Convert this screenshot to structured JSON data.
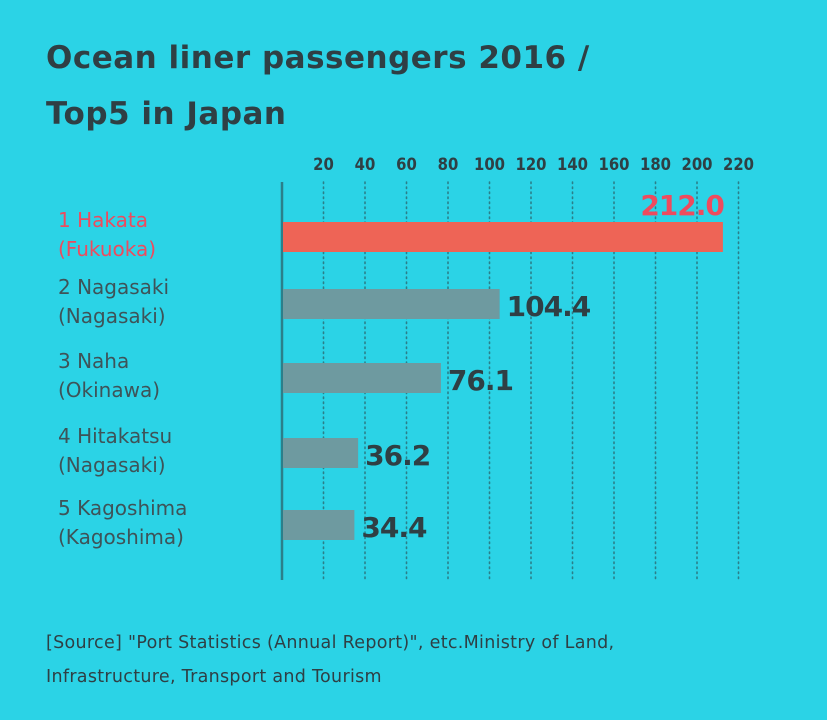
{
  "title": {
    "line1": "Ocean liner passengers 2016 /",
    "line2": "Top5 in Japan"
  },
  "chart_data": {
    "type": "bar",
    "orientation": "horizontal",
    "categories": [
      {
        "line1": "1 Hakata",
        "line2": "(Fukuoka)"
      },
      {
        "line1": "2 Nagasaki",
        "line2": "(Nagasaki)"
      },
      {
        "line1": "3 Naha",
        "line2": "(Okinawa)"
      },
      {
        "line1": "4 Hitakatsu",
        "line2": "(Nagasaki)"
      },
      {
        "line1": "5 Kagoshima",
        "line2": "(Kagoshima)"
      }
    ],
    "values": [
      212.0,
      104.4,
      76.1,
      36.2,
      34.4
    ],
    "value_labels": [
      "212.0",
      "104.4",
      "76.1",
      "36.2",
      "34.4"
    ],
    "highlight_index": 0,
    "xlim": [
      0,
      220
    ],
    "x_ticks": [
      20,
      40,
      60,
      80,
      100,
      120,
      140,
      160,
      180,
      200,
      220
    ],
    "grid": "vertical dotted",
    "colors": {
      "background": "#2bd3e6",
      "highlight_bar": "#ee6456",
      "highlight_text": "#ee4b5e",
      "bar": "#6e9aa0",
      "text": "#2f3f44",
      "label_text": "#3e5358",
      "axis": "#2b7f8a"
    }
  },
  "source": {
    "line1": "[Source] \"Port Statistics (Annual Report)\", etc.Ministry of Land,",
    "line2": "Infrastructure, Transport and Tourism"
  }
}
